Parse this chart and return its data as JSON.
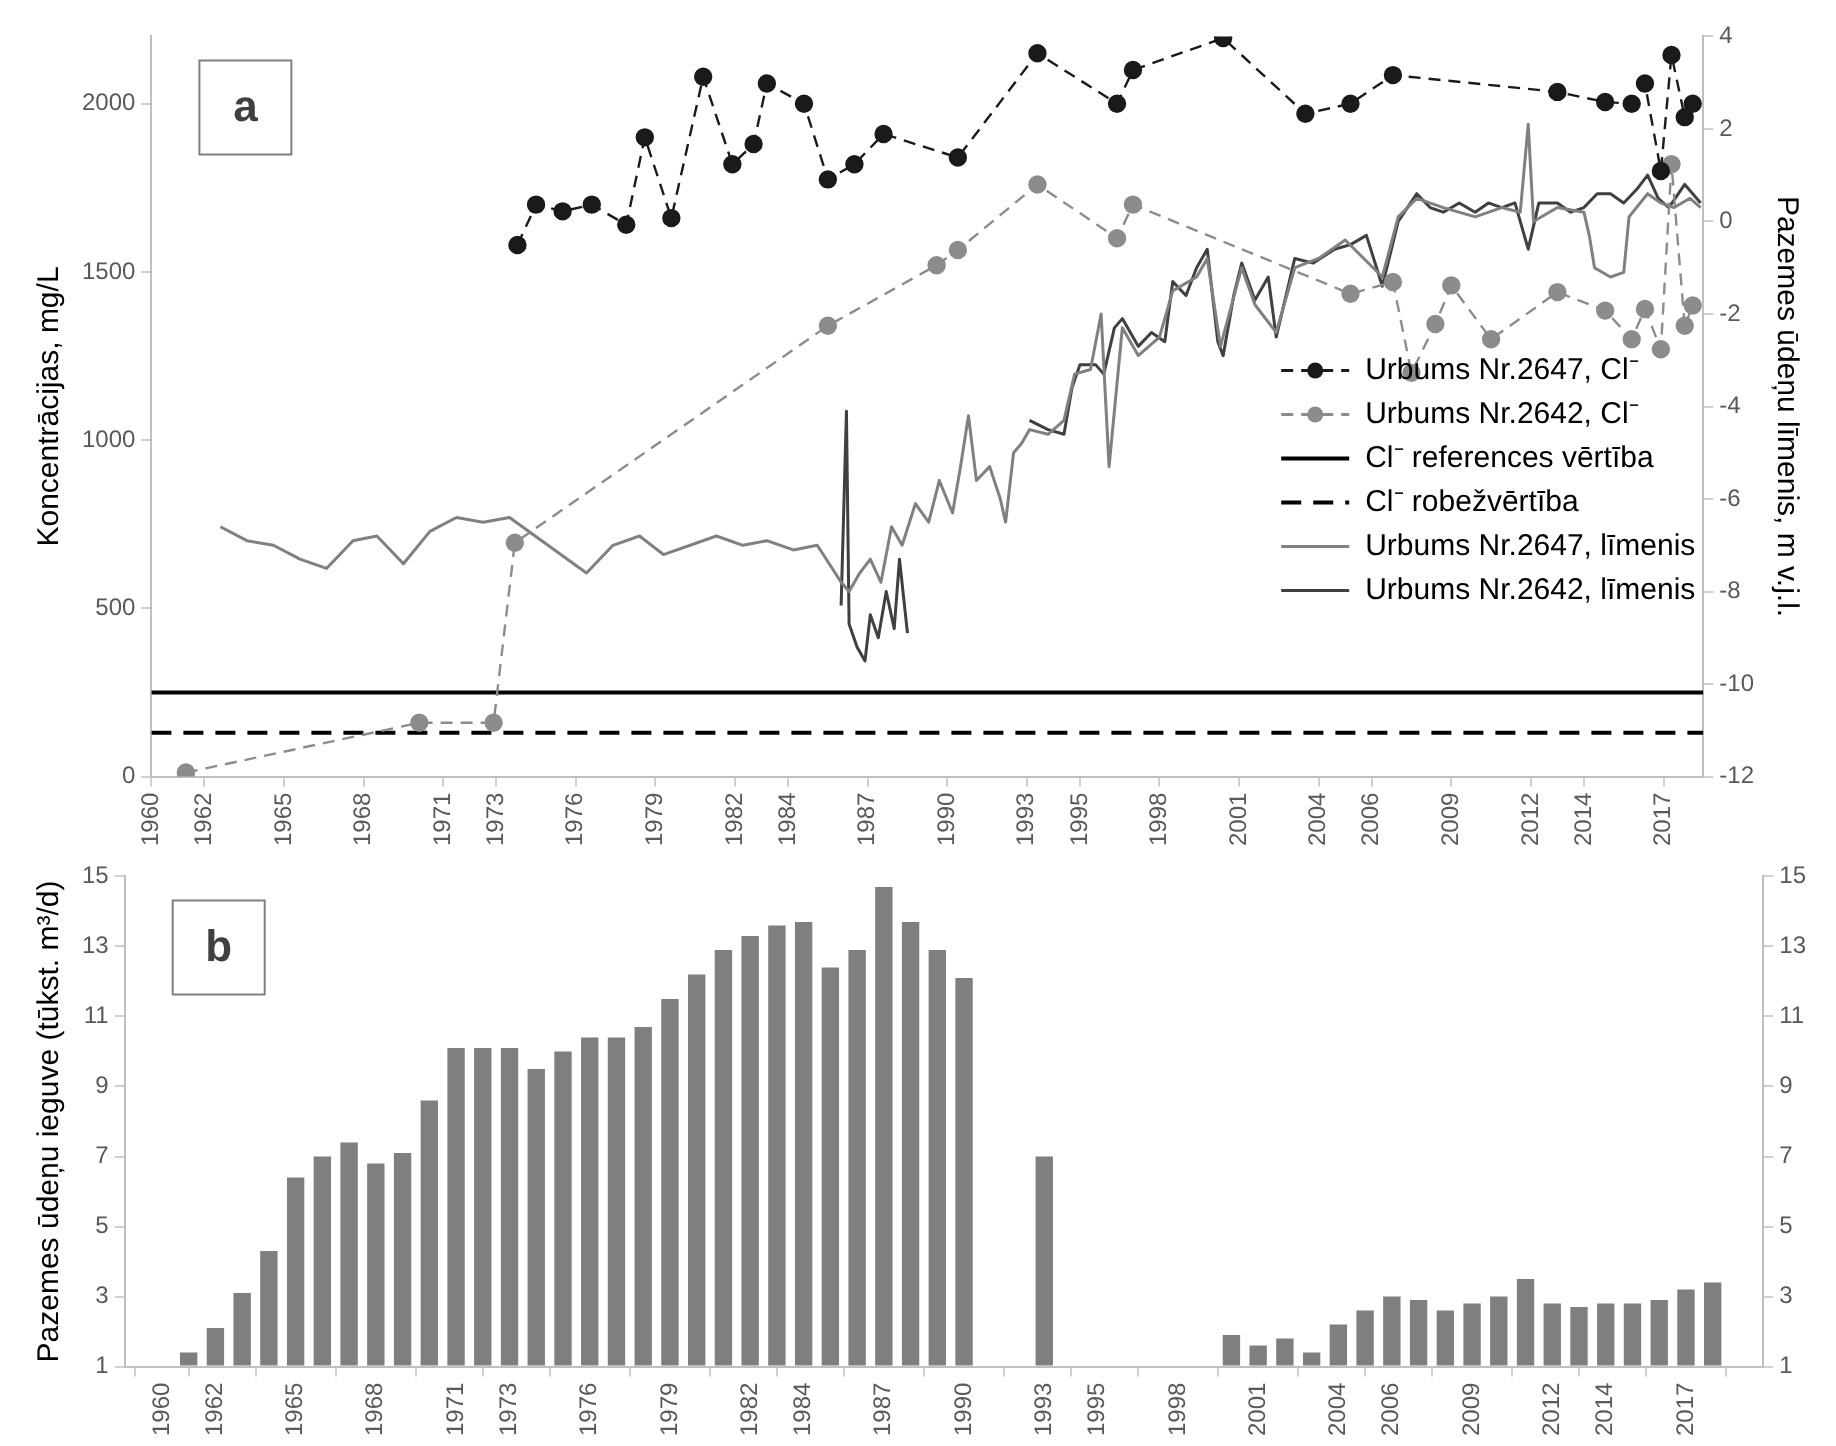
{
  "chart_data": [
    {
      "type": "line",
      "ylabel": "Koncentrācijas, mg/L",
      "y2label": "Pazemes ūdeņu līmenis, m v.j.l.",
      "annotations": [
        "a"
      ],
      "xlim": [
        1960,
        2018.5
      ],
      "xticks": [
        1960,
        1962,
        1965,
        1968,
        1971,
        1973,
        1976,
        1979,
        1982,
        1984,
        1987,
        1990,
        1993,
        1995,
        1998,
        2001,
        2004,
        2006,
        2009,
        2012,
        2014,
        2017
      ],
      "ylim": [
        0,
        2200
      ],
      "yticks": [
        0,
        500,
        1000,
        1500,
        2000
      ],
      "y2lim": [
        -12,
        4
      ],
      "y2ticks": [
        -12,
        -10,
        -8,
        -6,
        -4,
        -2,
        0,
        2,
        4
      ],
      "grid": false,
      "legend": "right",
      "ref_lines": [
        {
          "axis": "y",
          "value": 250,
          "label": "Cl⁻ references vērtība",
          "color": "#000000",
          "line_style": "solid"
        },
        {
          "axis": "y",
          "value": 130,
          "label": "Cl⁻ robežvērtība",
          "color": "#000000",
          "line_style": "dashed"
        }
      ],
      "series": [
        {
          "name": "Urbums Nr.2647, Cl⁻",
          "color": "#1a1a1a",
          "marker": "circle",
          "line_style": "dashed",
          "axis": "y",
          "x": [
            1973.8,
            1974.5,
            1975.5,
            1976.6,
            1977.9,
            1978.6,
            1979.6,
            1980.8,
            1981.9,
            1982.7,
            1983.2,
            1984.6,
            1985.5,
            1986.5,
            1987.6,
            1990.4,
            1993.4,
            1996.4,
            1997.0,
            2000.4,
            2003.5,
            2005.2,
            2006.8,
            2013.0,
            2014.8,
            2015.8,
            2016.3,
            2016.9,
            2017.3,
            2017.8,
            2018.1
          ],
          "values": [
            1580,
            1700,
            1680,
            1700,
            1640,
            1900,
            1660,
            2080,
            1820,
            1880,
            2060,
            2000,
            1775,
            1820,
            1910,
            1840,
            2150,
            2000,
            2100,
            2195,
            1970,
            2000,
            2085,
            2035,
            2005,
            2000,
            2060,
            1800,
            2145,
            1960,
            2000
          ]
        },
        {
          "name": "Urbums Nr.2642, Cl⁻",
          "color": "#8c8c8c",
          "marker": "circle",
          "line_style": "dashed",
          "axis": "y",
          "x": [
            1961.3,
            1970.1,
            1972.9,
            1973.7,
            1985.5,
            1989.6,
            1990.4,
            1993.4,
            1996.4,
            1997.0,
            2005.2,
            2006.8,
            2007.5,
            2008.4,
            2009.0,
            2010.5,
            2013.0,
            2014.8,
            2015.8,
            2016.3,
            2016.9,
            2017.3,
            2017.8,
            2018.1
          ],
          "values": [
            12,
            160,
            160,
            695,
            1340,
            1520,
            1565,
            1760,
            1600,
            1700,
            1435,
            1470,
            1200,
            1345,
            1460,
            1300,
            1440,
            1385,
            1300,
            1390,
            1270,
            1820,
            1340,
            1400
          ]
        },
        {
          "name": "Urbums Nr.2647, līmenis",
          "color": "#808080",
          "marker": "none",
          "line_style": "solid",
          "axis": "y2",
          "x": [
            1962.6,
            1963.6,
            1964.6,
            1965.6,
            1966.6,
            1967.6,
            1968.5,
            1969.5,
            1970.5,
            1971.5,
            1972.5,
            1973.5,
            1976.4,
            1977.4,
            1978.4,
            1979.3,
            1981.3,
            1982.3,
            1983.2,
            1984.2,
            1985.1,
            1986.0,
            1986.3,
            1986.7,
            1987.1,
            1987.5,
            1987.9,
            1988.3,
            1988.8,
            1989.3,
            1989.7,
            1990.2,
            1990.5,
            1990.8,
            1991.1,
            1991.6,
            1992.0,
            1992.2,
            1992.5,
            1992.8,
            1993.1,
            1993.8,
            1994.4,
            1994.8,
            1995.4,
            1995.8,
            1996.1,
            1996.6,
            1997.2,
            1998.0,
            1998.5,
            1999.4,
            1999.8,
            2000.3,
            2001.1,
            2001.6,
            2002.4,
            2003.1,
            2004.0,
            2005.0,
            2006.4,
            2007.0,
            2007.7,
            2008.7,
            2009.9,
            2010.9,
            2011.6,
            2011.9,
            2012.1,
            2013.0,
            2014.0,
            2014.2,
            2014.4,
            2015.0,
            2015.5,
            2015.7,
            2016.4,
            2016.9,
            2017.4,
            2018.0,
            2018.4
          ],
          "values": [
            -6.6,
            -6.9,
            -7.0,
            -7.3,
            -7.5,
            -6.9,
            -6.8,
            -7.4,
            -6.7,
            -6.4,
            -6.5,
            -6.4,
            -7.6,
            -7.0,
            -6.8,
            -7.2,
            -6.8,
            -7.0,
            -6.9,
            -7.1,
            -7.0,
            -7.8,
            -8.0,
            -7.6,
            -7.3,
            -7.8,
            -6.6,
            -7.0,
            -6.1,
            -6.5,
            -5.6,
            -6.3,
            -5.3,
            -4.2,
            -5.6,
            -5.3,
            -6.0,
            -6.5,
            -5.0,
            -4.8,
            -4.5,
            -4.6,
            -4.3,
            -3.3,
            -3.2,
            -2.0,
            -5.3,
            -2.3,
            -2.9,
            -2.5,
            -1.5,
            -1.2,
            -0.8,
            -2.7,
            -1.0,
            -1.8,
            -2.4,
            -1.0,
            -0.8,
            -0.4,
            -1.2,
            0.1,
            0.5,
            0.3,
            0.1,
            0.3,
            0.2,
            2.1,
            0.0,
            0.3,
            0.2,
            -0.3,
            -1.0,
            -1.2,
            -1.1,
            0.1,
            0.6,
            0.4,
            0.3,
            0.5,
            0.3
          ]
        },
        {
          "name": "Urbums Nr.2642, līmenis",
          "color": "#404040",
          "marker": "none",
          "line_style": "solid",
          "axis": "y2",
          "x": [
            1986.0,
            1986.2,
            1986.3,
            1986.6,
            1986.9,
            1987.1,
            1987.4,
            1987.7,
            1988.0,
            1988.2,
            1988.5,
            1990.8,
            1993.1,
            1993.8,
            1994.4,
            1994.7,
            1995.0,
            1995.6,
            1995.9,
            1996.3,
            1996.6,
            1997.2,
            1997.7,
            1998.2,
            1998.5,
            1999.0,
            1999.4,
            1999.8,
            2000.2,
            2000.4,
            2000.8,
            2001.1,
            2001.6,
            2002.1,
            2002.4,
            2003.1,
            2003.8,
            2004.6,
            2005.2,
            2005.8,
            2006.4,
            2007.0,
            2007.7,
            2008.2,
            2008.7,
            2009.3,
            2009.9,
            2010.4,
            2010.9,
            2011.4,
            2011.9,
            2012.3,
            2013.0,
            2013.5,
            2014.0,
            2014.5,
            2015.0,
            2015.5,
            2016.0,
            2016.4,
            2016.8,
            2017.2,
            2017.8,
            2018.4
          ],
          "values": [
            -8.3,
            -4.1,
            -8.7,
            -9.2,
            -9.5,
            -8.5,
            -9.0,
            -8.0,
            -8.8,
            -7.3,
            -8.9,
            null,
            -4.3,
            -4.5,
            -4.6,
            -3.6,
            -3.1,
            -3.1,
            -3.3,
            -2.3,
            -2.1,
            -2.7,
            -2.4,
            -2.6,
            -1.3,
            -1.6,
            -1.0,
            -0.6,
            -2.6,
            -2.9,
            -1.6,
            -0.9,
            -1.7,
            -1.2,
            -2.5,
            -0.8,
            -0.9,
            -0.6,
            -0.5,
            -0.3,
            -1.4,
            0.0,
            0.6,
            0.3,
            0.2,
            0.4,
            0.2,
            0.4,
            0.3,
            0.4,
            -0.6,
            0.4,
            0.4,
            0.2,
            0.3,
            0.6,
            0.6,
            0.4,
            0.7,
            1.0,
            0.5,
            0.3,
            0.8,
            0.4
          ]
        }
      ]
    },
    {
      "type": "bar",
      "ylabel": "Pazemes ūdeņu ieguve (tūkst. m³/d)",
      "annotations": [
        "b"
      ],
      "color": "#7f7f7f",
      "xlim": [
        1960,
        2018.5
      ],
      "xticks": [
        1960,
        1962,
        1965,
        1968,
        1971,
        1973,
        1976,
        1979,
        1982,
        1984,
        1987,
        1990,
        1993,
        1995,
        1998,
        2001,
        2004,
        2006,
        2009,
        2012,
        2014,
        2017
      ],
      "ylim": [
        1,
        15
      ],
      "yticks": [
        1,
        3,
        5,
        7,
        9,
        11,
        13,
        15
      ],
      "y2lim": [
        1,
        15
      ],
      "y2ticks": [
        1,
        3,
        5,
        7,
        9,
        11,
        13,
        15
      ],
      "grid": false,
      "x": [
        1961,
        1962,
        1963,
        1964,
        1965,
        1966,
        1967,
        1968,
        1969,
        1970,
        1971,
        1972,
        1973,
        1974,
        1975,
        1976,
        1977,
        1978,
        1979,
        1980,
        1981,
        1982,
        1983,
        1984,
        1985,
        1986,
        1987,
        1988,
        1989,
        1990,
        1993,
        2000,
        2001,
        2002,
        2003,
        2004,
        2005,
        2006,
        2007,
        2008,
        2009,
        2010,
        2011,
        2012,
        2013,
        2014,
        2015,
        2016,
        2017,
        2018
      ],
      "values": [
        1.4,
        2.1,
        3.1,
        4.3,
        6.4,
        7.0,
        7.4,
        6.8,
        7.1,
        8.6,
        10.1,
        10.1,
        10.1,
        9.5,
        10.0,
        10.4,
        10.4,
        10.7,
        11.5,
        12.2,
        12.9,
        13.3,
        13.6,
        13.7,
        12.4,
        12.9,
        14.7,
        13.7,
        12.9,
        12.1,
        7.0,
        1.9,
        1.6,
        1.8,
        1.4,
        2.2,
        2.6,
        3.0,
        2.9,
        2.6,
        2.8,
        3.0,
        3.5,
        2.8,
        2.7,
        2.8,
        2.8,
        2.9,
        3.2,
        3.4
      ]
    }
  ]
}
